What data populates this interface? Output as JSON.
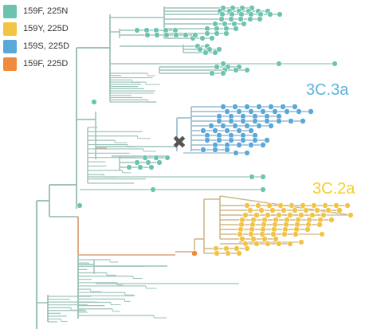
{
  "legend": {
    "items": [
      {
        "label": "159F, 225N",
        "color": "#6cc4b0"
      },
      {
        "label": "159Y, 225D",
        "color": "#f3c444"
      },
      {
        "label": "159S, 225D",
        "color": "#5aa8d8"
      },
      {
        "label": "159F, 225D",
        "color": "#f08a3c"
      }
    ]
  },
  "clades": [
    {
      "label": "3C.3a",
      "color": "#5ab4de"
    },
    {
      "label": "3C.2a",
      "color": "#f5cc2e"
    }
  ],
  "marker": {
    "symbol": "✖",
    "color": "#555555"
  },
  "colors": {
    "branch_main": "#9ec3bb",
    "branch_3c3a": "#97b7cf",
    "branch_3c2a": "#cdb98a",
    "branch_ancestral": "#e0a27a",
    "tip_3c3a": "#5aa8d8",
    "tip_3c2a": "#f3c444",
    "tip_main": "#6cc4b0",
    "tip_orange": "#f08a3c"
  }
}
